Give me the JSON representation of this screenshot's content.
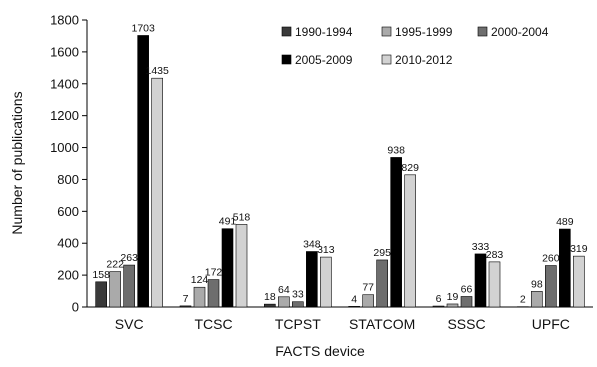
{
  "chart_data": {
    "type": "bar",
    "title": "",
    "xlabel": "FACTS device",
    "ylabel": "Number of publications",
    "ylim": [
      0,
      1800
    ],
    "yticks": [
      0,
      200,
      400,
      600,
      800,
      1000,
      1200,
      1400,
      1600,
      1800
    ],
    "grid": false,
    "legend_position": "top-right",
    "categories": [
      "SVC",
      "TCSC",
      "TCPST",
      "STATCOM",
      "SSSC",
      "UPFC"
    ],
    "series": [
      {
        "name": "1990-1994",
        "color": "#3a3a3a",
        "values": [
          158,
          7,
          18,
          4,
          6,
          2
        ]
      },
      {
        "name": "1995-1999",
        "color": "#aaaaaa",
        "values": [
          222,
          124,
          64,
          77,
          19,
          98
        ]
      },
      {
        "name": "2000-2004",
        "color": "#6e6e6e",
        "values": [
          263,
          172,
          33,
          295,
          66,
          260
        ]
      },
      {
        "name": "2005-2009",
        "color": "#000000",
        "values": [
          1703,
          491,
          348,
          938,
          333,
          489
        ]
      },
      {
        "name": "2010-2012",
        "color": "#d2d2d2",
        "values": [
          1435,
          518,
          313,
          829,
          283,
          319
        ]
      }
    ]
  }
}
